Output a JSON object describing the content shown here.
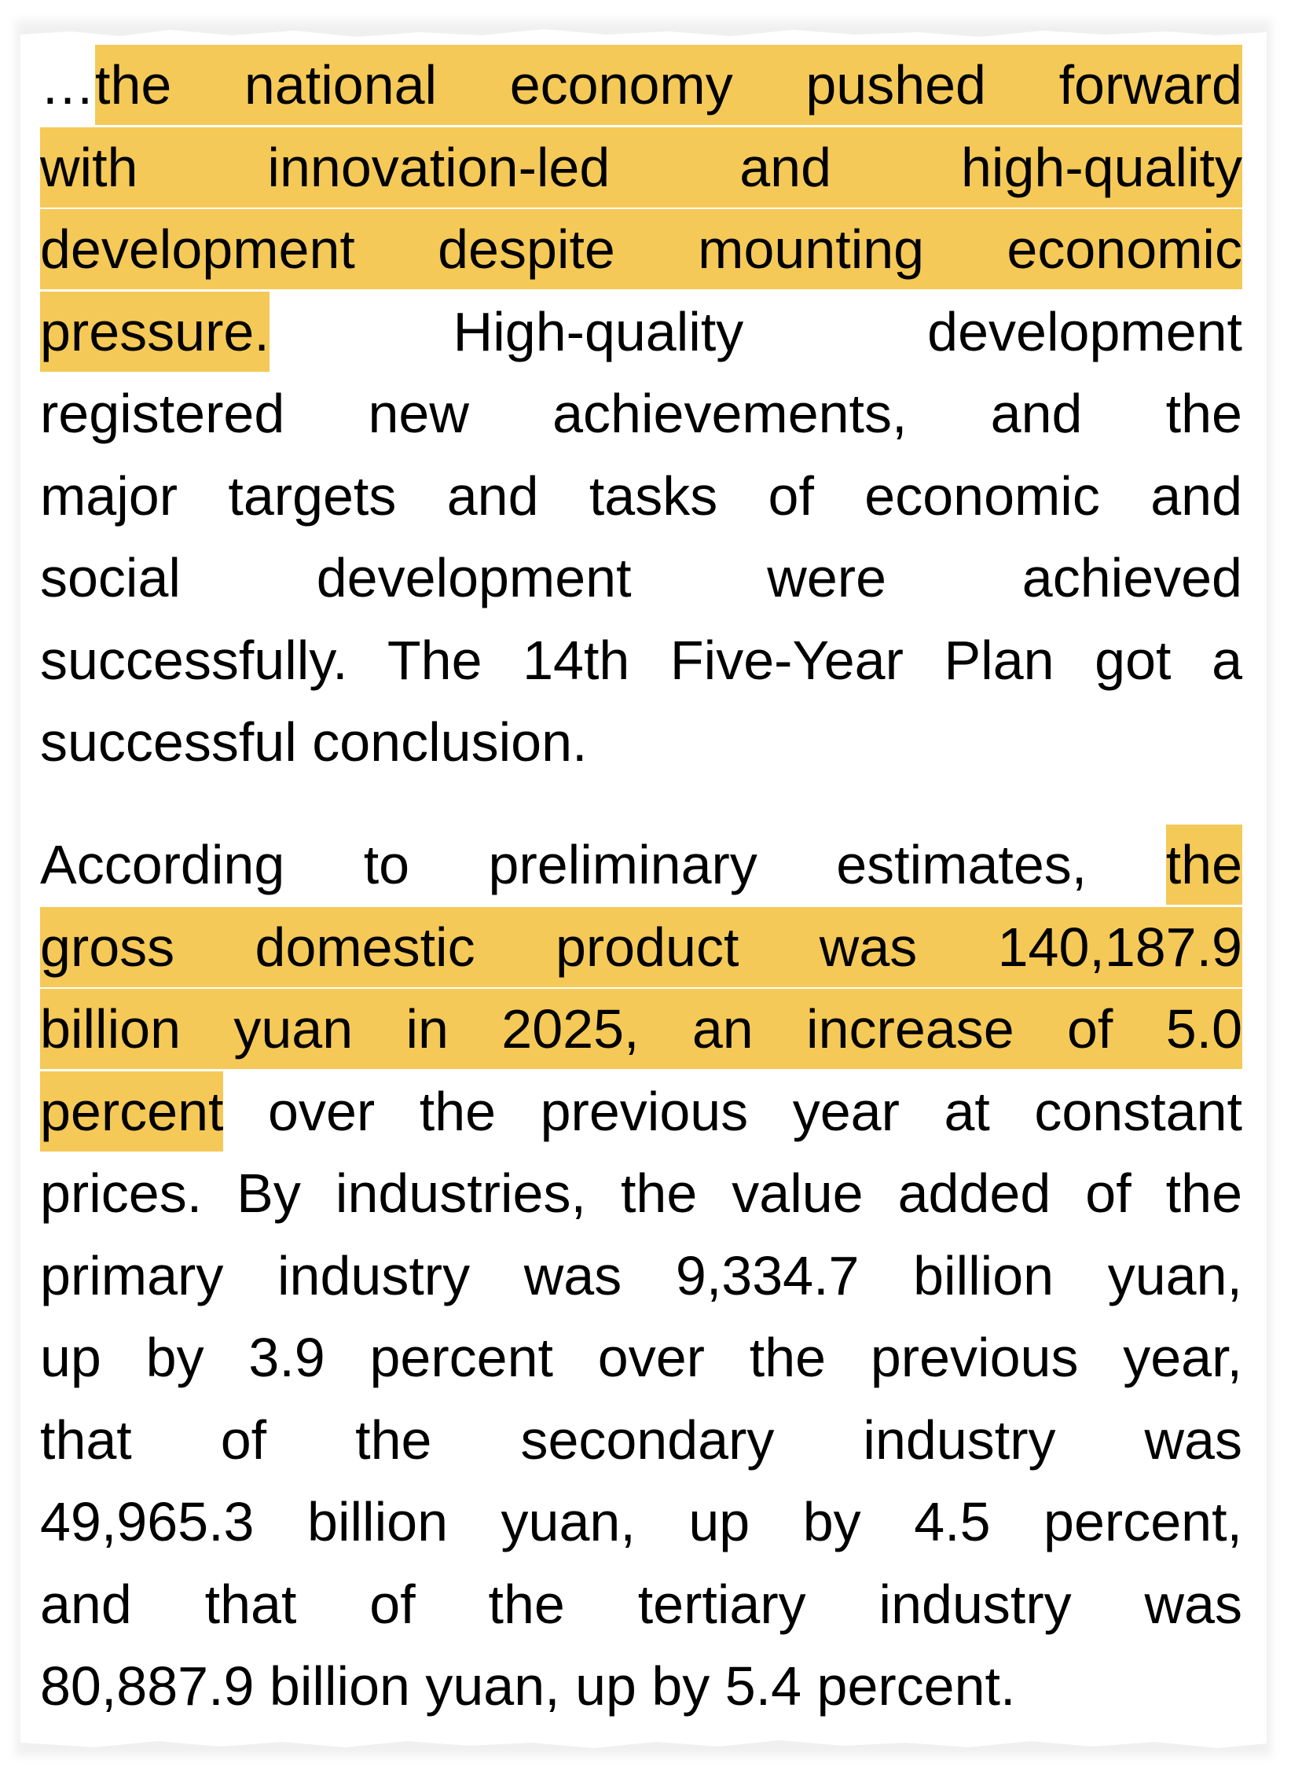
{
  "highlight_color": "#F5C957",
  "paragraphs": [
    {
      "lines": [
        {
          "segments": [
            {
              "text": "…",
              "hl": false
            },
            {
              "text": "the national economy pushed forward",
              "hl": true
            }
          ]
        },
        {
          "segments": [
            {
              "text": "with innovation-led and high-quality",
              "hl": true
            }
          ]
        },
        {
          "segments": [
            {
              "text": "development despite mounting economic",
              "hl": true
            }
          ]
        },
        {
          "segments": [
            {
              "text": "pressure.",
              "hl": true
            },
            {
              "text": " High-quality development",
              "hl": false
            }
          ]
        },
        {
          "segments": [
            {
              "text": "registered new achievements, and the",
              "hl": false
            }
          ]
        },
        {
          "segments": [
            {
              "text": "major targets and tasks of economic and",
              "hl": false
            }
          ]
        },
        {
          "segments": [
            {
              "text": "social development were achieved",
              "hl": false
            }
          ]
        },
        {
          "segments": [
            {
              "text": "successfully. The 14th Five-Year Plan got a",
              "hl": false
            }
          ]
        },
        {
          "segments": [
            {
              "text": "successful conclusion.",
              "hl": false
            }
          ],
          "last": true
        }
      ]
    },
    {
      "lines": [
        {
          "segments": [
            {
              "text": "According to preliminary estimates, ",
              "hl": false
            },
            {
              "text": "the",
              "hl": true
            }
          ]
        },
        {
          "segments": [
            {
              "text": "gross domestic product was 140,187.9",
              "hl": true
            }
          ]
        },
        {
          "segments": [
            {
              "text": "billion yuan in 2025, an increase of 5.0",
              "hl": true
            }
          ]
        },
        {
          "segments": [
            {
              "text": "percent",
              "hl": true
            },
            {
              "text": " over the previous year at constant",
              "hl": false
            }
          ]
        },
        {
          "segments": [
            {
              "text": "prices. By industries, the value added of the",
              "hl": false
            }
          ]
        },
        {
          "segments": [
            {
              "text": "primary industry was 9,334.7 billion yuan,",
              "hl": false
            }
          ]
        },
        {
          "segments": [
            {
              "text": "up by 3.9 percent over the previous year,",
              "hl": false
            }
          ]
        },
        {
          "segments": [
            {
              "text": "that of the secondary industry was",
              "hl": false
            }
          ]
        },
        {
          "segments": [
            {
              "text": "49,965.3 billion yuan, up by 4.5 percent,",
              "hl": false
            }
          ]
        },
        {
          "segments": [
            {
              "text": "and that of the tertiary industry was",
              "hl": false
            }
          ]
        },
        {
          "segments": [
            {
              "text": "80,887.9 billion yuan, up by 5.4 percent.",
              "hl": false
            }
          ],
          "last": true
        }
      ]
    }
  ]
}
